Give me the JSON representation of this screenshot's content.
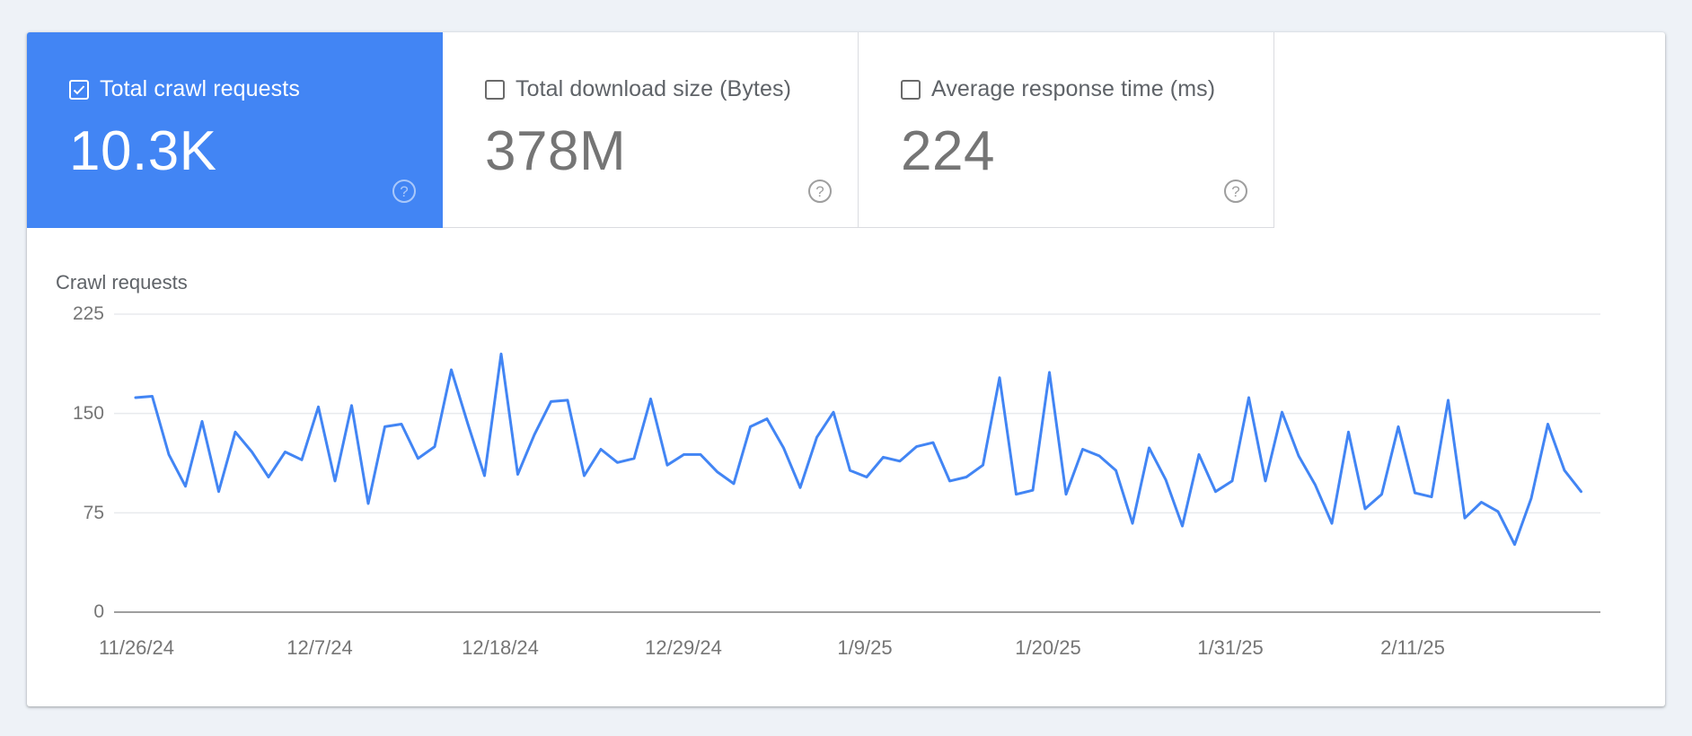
{
  "colors": {
    "accent": "#4285f4",
    "line": "#4285f4",
    "page_bg": "#eef2f7",
    "grid": "#e8eaed",
    "axis": "#9e9e9e",
    "muted_text": "#757575"
  },
  "tabs": [
    {
      "label": "Total crawl requests",
      "value": "10.3K",
      "checked": true,
      "help_icon": "help-circle-icon"
    },
    {
      "label": "Total download size (Bytes)",
      "value": "378M",
      "checked": false,
      "help_icon": "help-circle-icon"
    },
    {
      "label": "Average response time (ms)",
      "value": "224",
      "checked": false,
      "help_icon": "help-circle-icon"
    }
  ],
  "chart": {
    "title": "Crawl requests",
    "y_ticks": [
      "225",
      "150",
      "75",
      "0"
    ],
    "x_ticks": [
      "11/26/24",
      "12/7/24",
      "12/18/24",
      "12/29/24",
      "1/9/25",
      "1/20/25",
      "1/31/25",
      "2/11/25"
    ]
  },
  "chart_data": {
    "type": "line",
    "title": "Crawl requests",
    "xlabel": "",
    "ylabel": "Crawl requests",
    "ylim": [
      0,
      225
    ],
    "y_ticks": [
      0,
      75,
      150,
      225
    ],
    "grid": true,
    "legend": "none",
    "x_tick_labels": [
      "11/26/24",
      "12/7/24",
      "12/18/24",
      "12/29/24",
      "1/9/25",
      "1/20/25",
      "1/31/25",
      "2/11/25"
    ],
    "x_start": "11/26/24",
    "x_end": "2/21/25",
    "x_interval": "1 day",
    "series": [
      {
        "name": "Total crawl requests",
        "color": "#4285f4",
        "values": [
          162,
          163,
          119,
          95,
          144,
          91,
          136,
          121,
          102,
          121,
          115,
          155,
          99,
          156,
          82,
          140,
          142,
          116,
          125,
          183,
          142,
          103,
          195,
          104,
          134,
          159,
          160,
          103,
          123,
          113,
          116,
          161,
          111,
          119,
          119,
          106,
          97,
          140,
          146,
          124,
          94,
          132,
          151,
          107,
          102,
          117,
          114,
          125,
          128,
          99,
          102,
          111,
          177,
          89,
          92,
          181,
          89,
          123,
          118,
          107,
          67,
          124,
          100,
          65,
          119,
          91,
          99,
          162,
          99,
          151,
          118,
          96,
          67,
          136,
          78,
          89,
          140,
          90,
          87,
          160,
          71,
          83,
          76,
          51,
          86,
          142,
          107,
          91
        ]
      }
    ]
  }
}
